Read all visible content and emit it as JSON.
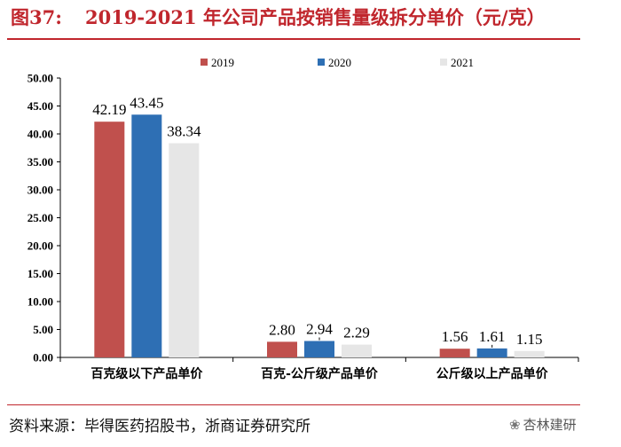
{
  "header": {
    "fig_num": "图37:",
    "title": "2019-2021 年公司产品按销售量级拆分单价（元/克）"
  },
  "source": "资料来源：毕得医药招股书，浙商证券研究所",
  "watermark": "杏林建研",
  "colors": {
    "title": "#c0262d",
    "s2019": "#c0504d",
    "s2020": "#2e6fb4",
    "s2021": "#e6e6e6"
  },
  "chart_data": {
    "type": "bar",
    "title": "2019-2021 年公司产品按销售量级拆分单价（元/克）",
    "categories": [
      "百克级以下产品单价",
      "百克-公斤级产品单价",
      "公斤级以上产品单价"
    ],
    "series": [
      {
        "name": "2019",
        "values": [
          42.19,
          2.8,
          1.56
        ],
        "labels": [
          "42.19",
          "2.80",
          "1.56"
        ]
      },
      {
        "name": "2020",
        "values": [
          43.45,
          2.94,
          1.61
        ],
        "labels": [
          "43.45",
          "2.94",
          "1.61"
        ]
      },
      {
        "name": "2021",
        "values": [
          38.34,
          2.29,
          1.15
        ],
        "labels": [
          "38.34",
          "2.29",
          "1.15"
        ]
      }
    ],
    "yticks": [
      "0.00",
      "5.00",
      "10.00",
      "15.00",
      "20.00",
      "25.00",
      "30.00",
      "35.00",
      "40.00",
      "45.00",
      "50.00"
    ],
    "ylim": [
      0,
      50
    ],
    "xlabel": "",
    "ylabel": "",
    "legend": "top-center",
    "grid": false
  }
}
